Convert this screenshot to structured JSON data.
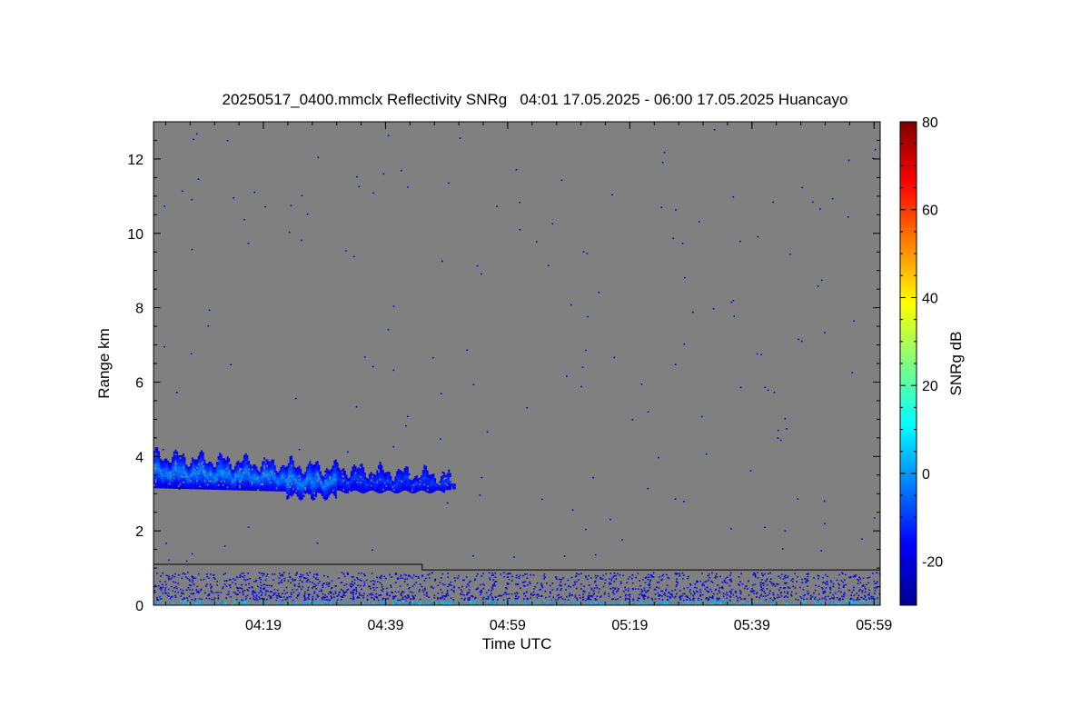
{
  "chart_data": {
    "type": "heatmap",
    "title": "20250517_0400.mmclx Reflectivity SNRg   04:01 17.05.2025 - 06:00 17.05.2025 Huancayo",
    "xlabel": "Time UTC",
    "ylabel": "Range km",
    "x_start": "04:01",
    "x_end": "06:00",
    "x_range_minutes": [
      241,
      360
    ],
    "x_ticks": [
      {
        "value": 259,
        "label": "04:19"
      },
      {
        "value": 279,
        "label": "04:39"
      },
      {
        "value": 299,
        "label": "04:59"
      },
      {
        "value": 319,
        "label": "05:19"
      },
      {
        "value": 339,
        "label": "05:39"
      },
      {
        "value": 359,
        "label": "05:59"
      }
    ],
    "ylim": [
      0,
      13
    ],
    "y_ticks": [
      0,
      2,
      4,
      6,
      8,
      10,
      12
    ],
    "colorbar": {
      "label": "SNRg dB",
      "range": [
        -30,
        80
      ],
      "ticks": [
        -20,
        0,
        20,
        40,
        60,
        80
      ],
      "colormap": "jet"
    },
    "background_color": "#808080",
    "features": [
      {
        "name": "cloud layer",
        "time_range": [
          "04:01",
          "04:49"
        ],
        "range_km": [
          3.0,
          4.0
        ],
        "snr_db": [
          -20,
          0
        ]
      },
      {
        "name": "near-surface clutter",
        "time_range": [
          "04:01",
          "06:00"
        ],
        "range_km": [
          0.0,
          0.9
        ],
        "snr_db": [
          -20,
          10
        ]
      }
    ],
    "boundary_line": [
      {
        "time": "04:01",
        "range_km": 1.1
      },
      {
        "time": "04:45",
        "range_km": 1.1
      },
      {
        "time": "04:45",
        "range_km": 0.95
      },
      {
        "time": "06:00",
        "range_km": 0.95
      }
    ]
  }
}
